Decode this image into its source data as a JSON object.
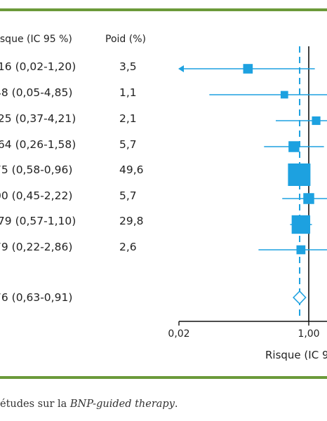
{
  "header": {
    "rr_label": "isque (IC 95 %)",
    "weight_label": "Poid (%)"
  },
  "rows": [
    {
      "rr_text": ",16 (0,02-1,20)",
      "weight_text": "3,5"
    },
    {
      "rr_text": "48 (0,05-4,85)",
      "weight_text": "1,1"
    },
    {
      "rr_text": ",25 (0,37-4,21)",
      "weight_text": "2,1"
    },
    {
      "rr_text": ",64 (0,26-1,58)",
      "weight_text": "5,7"
    },
    {
      "rr_text": "75 (0,58-0,96)",
      "weight_text": "49,6"
    },
    {
      "rr_text": "00 (0,45-2,22)",
      "weight_text": "5,7"
    },
    {
      "rr_text": ",79 (0,57-1,10)",
      "weight_text": "29,8"
    },
    {
      "rr_text": "79 (0,22-2,86)",
      "weight_text": "2,6"
    }
  ],
  "pooled": {
    "rr_text": "76 (0,63-0,91)"
  },
  "caption": {
    "prefix": "études sur la ",
    "italic": "BNP-guided therapy",
    "suffix": "."
  },
  "colors": {
    "accent": "#1da1e0",
    "rule": "#6b9a3a",
    "axis": "#111111"
  },
  "chart_data": {
    "type": "forest",
    "x_scale": "log",
    "x_ticks": [
      "0,02",
      "1,00"
    ],
    "xlabel": "Risque (IC 9",
    "studies": [
      {
        "rr": 0.16,
        "lo": 0.02,
        "hi": 1.2,
        "weight": 3.5,
        "lower_arrow": true
      },
      {
        "rr": 0.48,
        "lo": 0.05,
        "hi": 4.85,
        "weight": 1.1
      },
      {
        "rr": 1.25,
        "lo": 0.37,
        "hi": 4.21,
        "weight": 2.1
      },
      {
        "rr": 0.64,
        "lo": 0.26,
        "hi": 1.58,
        "weight": 5.7
      },
      {
        "rr": 0.75,
        "lo": 0.58,
        "hi": 0.96,
        "weight": 49.6
      },
      {
        "rr": 1.0,
        "lo": 0.45,
        "hi": 2.22,
        "weight": 5.7
      },
      {
        "rr": 0.79,
        "lo": 0.57,
        "hi": 1.1,
        "weight": 29.8
      },
      {
        "rr": 0.79,
        "lo": 0.22,
        "hi": 2.86,
        "weight": 2.6
      }
    ],
    "pooled": {
      "rr": 0.76,
      "lo": 0.63,
      "hi": 0.91
    }
  }
}
